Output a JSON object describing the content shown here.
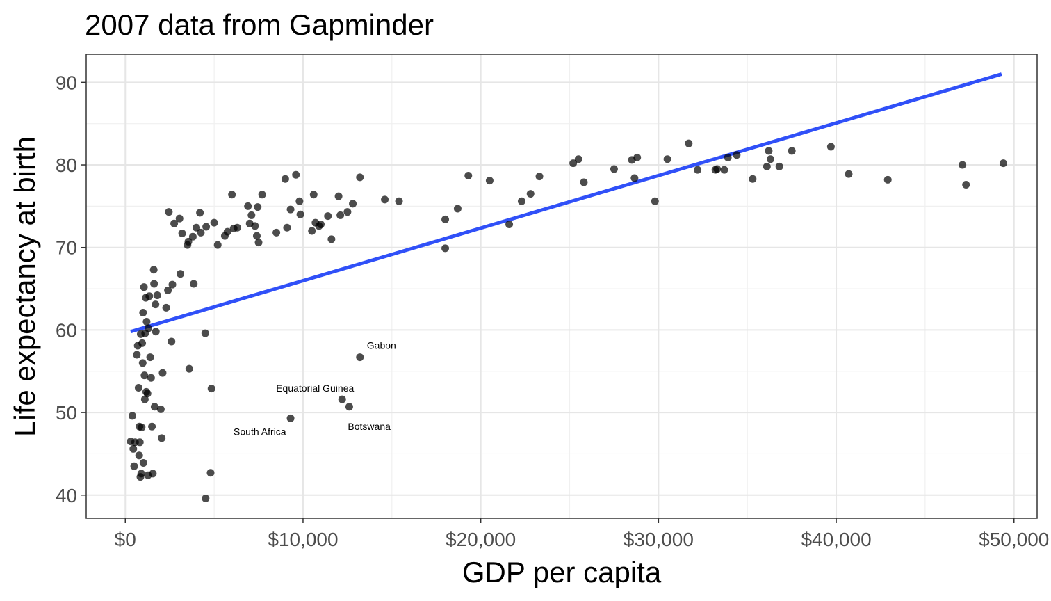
{
  "chart_data": {
    "type": "scatter",
    "title": "2007 data from Gapminder",
    "xlabel": "GDP per capita",
    "ylabel": "Life expectancy at birth",
    "xlim": [
      -2200,
      51300
    ],
    "ylim": [
      37.2,
      93.4
    ],
    "x_ticks": [
      0,
      10000,
      20000,
      30000,
      40000,
      50000
    ],
    "x_tick_labels": [
      "$0",
      "$10,000",
      "$20,000",
      "$30,000",
      "$40,000",
      "$50,000"
    ],
    "y_ticks": [
      40,
      50,
      60,
      70,
      80,
      90
    ],
    "y_tick_labels": [
      "40",
      "50",
      "60",
      "70",
      "80",
      "90"
    ],
    "grid": true,
    "point_color": "#000000",
    "point_opacity": 0.7,
    "line_color": "#3050f8",
    "trend_line": {
      "x": [
        300,
        49300
      ],
      "y": [
        59.8,
        91.0
      ]
    },
    "points": [
      [
        300,
        46.5
      ],
      [
        400,
        49.6
      ],
      [
        450,
        45.6
      ],
      [
        500,
        43.5
      ],
      [
        550,
        46.4
      ],
      [
        650,
        57.0
      ],
      [
        700,
        58.1
      ],
      [
        750,
        53.0
      ],
      [
        780,
        44.8
      ],
      [
        800,
        48.3
      ],
      [
        820,
        46.4
      ],
      [
        850,
        42.2
      ],
      [
        870,
        59.5
      ],
      [
        900,
        42.6
      ],
      [
        920,
        48.2
      ],
      [
        950,
        58.4
      ],
      [
        980,
        56.0
      ],
      [
        1000,
        62.1
      ],
      [
        1020,
        43.9
      ],
      [
        1050,
        65.2
      ],
      [
        1080,
        54.5
      ],
      [
        1100,
        51.6
      ],
      [
        1120,
        59.6
      ],
      [
        1150,
        63.9
      ],
      [
        1180,
        52.5
      ],
      [
        1200,
        61.0
      ],
      [
        1250,
        52.3
      ],
      [
        1280,
        42.4
      ],
      [
        1300,
        60.2
      ],
      [
        1350,
        64.1
      ],
      [
        1400,
        56.7
      ],
      [
        1450,
        54.2
      ],
      [
        1500,
        48.3
      ],
      [
        1550,
        42.6
      ],
      [
        1600,
        67.3
      ],
      [
        1620,
        65.6
      ],
      [
        1650,
        50.7
      ],
      [
        1700,
        63.1
      ],
      [
        1720,
        59.8
      ],
      [
        1800,
        64.2
      ],
      [
        2000,
        50.4
      ],
      [
        2050,
        46.9
      ],
      [
        2100,
        54.8
      ],
      [
        2300,
        62.7
      ],
      [
        2400,
        64.8
      ],
      [
        2450,
        74.3
      ],
      [
        2600,
        58.6
      ],
      [
        2650,
        65.5
      ],
      [
        2750,
        72.9
      ],
      [
        3050,
        73.5
      ],
      [
        3100,
        66.8
      ],
      [
        3200,
        71.7
      ],
      [
        3500,
        70.3
      ],
      [
        3550,
        70.7
      ],
      [
        3600,
        55.3
      ],
      [
        3800,
        71.3
      ],
      [
        3850,
        65.6
      ],
      [
        4000,
        72.4
      ],
      [
        4200,
        74.2
      ],
      [
        4250,
        71.8
      ],
      [
        4500,
        59.6
      ],
      [
        4520,
        39.6
      ],
      [
        4550,
        72.5
      ],
      [
        4800,
        42.7
      ],
      [
        4850,
        52.9
      ],
      [
        5000,
        73.0
      ],
      [
        5200,
        70.3
      ],
      [
        5600,
        71.4
      ],
      [
        5750,
        71.9
      ],
      [
        6000,
        76.4
      ],
      [
        6100,
        72.3
      ],
      [
        6300,
        72.4
      ],
      [
        6900,
        75.0
      ],
      [
        7000,
        72.9
      ],
      [
        7100,
        73.9
      ],
      [
        7300,
        72.6
      ],
      [
        7400,
        71.4
      ],
      [
        7450,
        74.9
      ],
      [
        7500,
        70.6
      ],
      [
        7700,
        76.4
      ],
      [
        8500,
        71.8
      ],
      [
        9000,
        78.3
      ],
      [
        9100,
        72.4
      ],
      [
        9300,
        74.6
      ],
      [
        9600,
        78.8
      ],
      [
        9800,
        75.6
      ],
      [
        9850,
        74.0
      ],
      [
        10500,
        72.0
      ],
      [
        10600,
        76.4
      ],
      [
        10700,
        73.0
      ],
      [
        10900,
        72.6
      ],
      [
        11000,
        72.8
      ],
      [
        11400,
        73.8
      ],
      [
        11600,
        71.0
      ],
      [
        12000,
        76.2
      ],
      [
        12100,
        73.9
      ],
      [
        12500,
        74.3
      ],
      [
        12800,
        75.3
      ],
      [
        13200,
        78.5
      ],
      [
        14600,
        75.8
      ],
      [
        15400,
        75.6
      ],
      [
        18000,
        69.9
      ],
      [
        18000,
        73.4
      ],
      [
        18700,
        74.7
      ],
      [
        19300,
        78.7
      ],
      [
        20500,
        78.1
      ],
      [
        21600,
        72.8
      ],
      [
        22300,
        75.6
      ],
      [
        22800,
        76.5
      ],
      [
        23300,
        78.6
      ],
      [
        25200,
        80.2
      ],
      [
        25500,
        80.7
      ],
      [
        25800,
        77.9
      ],
      [
        27500,
        79.5
      ],
      [
        28500,
        80.6
      ],
      [
        28650,
        78.4
      ],
      [
        28800,
        80.9
      ],
      [
        29800,
        75.6
      ],
      [
        30500,
        80.7
      ],
      [
        31700,
        82.6
      ],
      [
        32200,
        79.4
      ],
      [
        33200,
        79.4
      ],
      [
        33300,
        79.5
      ],
      [
        33700,
        79.4
      ],
      [
        33900,
        80.9
      ],
      [
        34400,
        81.2
      ],
      [
        35300,
        78.3
      ],
      [
        36100,
        79.8
      ],
      [
        36200,
        81.7
      ],
      [
        36300,
        80.7
      ],
      [
        36800,
        79.8
      ],
      [
        37500,
        81.7
      ],
      [
        39700,
        82.2
      ],
      [
        40700,
        78.9
      ],
      [
        42900,
        78.2
      ],
      [
        47100,
        80.0
      ],
      [
        47300,
        77.6
      ],
      [
        49400,
        80.2
      ],
      [
        9300,
        49.3
      ],
      [
        12200,
        51.6
      ],
      [
        12600,
        50.7
      ],
      [
        13200,
        56.7
      ]
    ],
    "annotations": [
      {
        "label": "Gabon",
        "x": 13200,
        "y": 56.7
      },
      {
        "label": "Equatorial Guinea",
        "x": 12200,
        "y": 51.6
      },
      {
        "label": "Botswana",
        "x": 12600,
        "y": 50.7
      },
      {
        "label": "South Africa",
        "x": 9300,
        "y": 49.3
      }
    ]
  }
}
